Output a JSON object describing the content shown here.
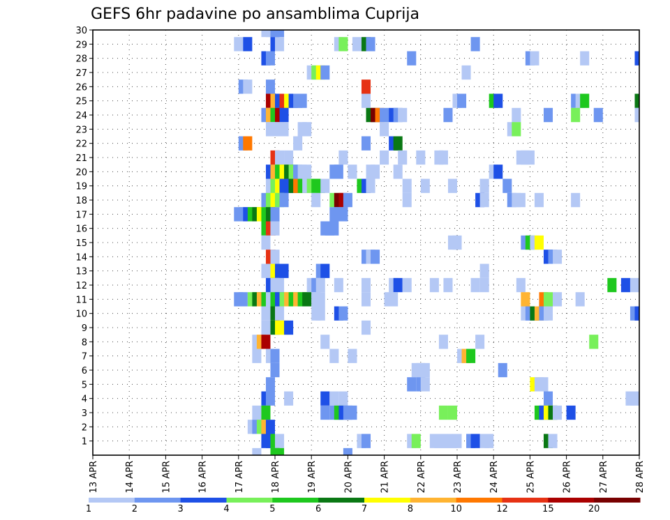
{
  "chart_data": {
    "type": "heatmap",
    "title": "GEFS 6hr padavine po ansamblima Cuprija",
    "xlabel": "",
    "ylabel": "",
    "x_ticks": [
      "13 APR",
      "14 APR",
      "15 APR",
      "16 APR",
      "17 APR",
      "18 APR",
      "19 APR",
      "20 APR",
      "21 APR",
      "22 APR",
      "23 APR",
      "24 APR",
      "25 APR",
      "26 APR",
      "27 APR",
      "28 APR"
    ],
    "x_range": [
      "13 APR 00Z",
      "28 APR 00Z"
    ],
    "time_step_hours": 6,
    "y_ticks": [
      1,
      2,
      3,
      4,
      5,
      6,
      7,
      8,
      9,
      10,
      11,
      12,
      13,
      14,
      15,
      16,
      17,
      18,
      19,
      20,
      21,
      22,
      23,
      24,
      25,
      26,
      27,
      28,
      29,
      30
    ],
    "y_range": [
      0,
      30
    ],
    "grid": true,
    "legend": {
      "placement": "bottom",
      "labels": [
        "1",
        "2",
        "3",
        "4",
        "5",
        "6",
        "7",
        "8",
        "10",
        "12",
        "15",
        "20"
      ],
      "colors": [
        "#b4c8f5",
        "#6e96f0",
        "#1e50e6",
        "#78f05a",
        "#1ec81e",
        "#0a7814",
        "#ffff00",
        "#ffb432",
        "#ff7800",
        "#e63214",
        "#aa0000",
        "#780000"
      ]
    },
    "color_bins": [
      "#b4c8f5",
      "#6e96f0",
      "#1e50e6",
      "#78f05a",
      "#1ec81e",
      "#0a7814",
      "#ffff00",
      "#ffb432",
      "#ff7800",
      "#e63214",
      "#aa0000",
      "#780000"
    ],
    "cells": [
      [
        30,
        17.625,
        0
      ],
      [
        30,
        17.75,
        0
      ],
      [
        30,
        17.875,
        1
      ],
      [
        30,
        18,
        1
      ],
      [
        29,
        16.875,
        0
      ],
      [
        29,
        17.125,
        2
      ],
      [
        29,
        17.875,
        2
      ],
      [
        29,
        18,
        0
      ],
      [
        29,
        19.625,
        0
      ],
      [
        29,
        19.75,
        3
      ],
      [
        29,
        20.125,
        0
      ],
      [
        29,
        20.375,
        5
      ],
      [
        29,
        20.5,
        1
      ],
      [
        29,
        23.375,
        1
      ],
      [
        28,
        17.625,
        2
      ],
      [
        28,
        17.75,
        1
      ],
      [
        28,
        21.625,
        1
      ],
      [
        28,
        24.875,
        1
      ],
      [
        28,
        25,
        0
      ],
      [
        28,
        26.375,
        0
      ],
      [
        28,
        27.875,
        2
      ],
      [
        27,
        18.875,
        0
      ],
      [
        27,
        19,
        3
      ],
      [
        27,
        19.125,
        6
      ],
      [
        27,
        19.25,
        1
      ],
      [
        27,
        23.125,
        0
      ],
      [
        26,
        17,
        1
      ],
      [
        26,
        17.125,
        0
      ],
      [
        26,
        17.75,
        1
      ],
      [
        26,
        20.375,
        9
      ],
      [
        25,
        17.75,
        10
      ],
      [
        25,
        17.875,
        7
      ],
      [
        25,
        18,
        2
      ],
      [
        25,
        18.125,
        9
      ],
      [
        25,
        18.25,
        6
      ],
      [
        25,
        18.375,
        2
      ],
      [
        25,
        18.5,
        1
      ],
      [
        25,
        18.625,
        1
      ],
      [
        25,
        20.375,
        0
      ],
      [
        25,
        22.875,
        0
      ],
      [
        25,
        23,
        1
      ],
      [
        25,
        23.875,
        4
      ],
      [
        25,
        24,
        2
      ],
      [
        25,
        26.125,
        1
      ],
      [
        25,
        26.25,
        0
      ],
      [
        25,
        26.375,
        4
      ],
      [
        25,
        27.875,
        5
      ],
      [
        24,
        17.625,
        1
      ],
      [
        24,
        17.75,
        7
      ],
      [
        24,
        17.875,
        4
      ],
      [
        24,
        18,
        10
      ],
      [
        24,
        18.125,
        2
      ],
      [
        24,
        20.5,
        5
      ],
      [
        24,
        20.625,
        11
      ],
      [
        24,
        20.75,
        8
      ],
      [
        24,
        20.875,
        1
      ],
      [
        24,
        21.125,
        2
      ],
      [
        24,
        21.25,
        1
      ],
      [
        24,
        21.375,
        0
      ],
      [
        24,
        22.625,
        1
      ],
      [
        24,
        24.5,
        0
      ],
      [
        24,
        25.375,
        1
      ],
      [
        24,
        26.125,
        3
      ],
      [
        24,
        26.75,
        1
      ],
      [
        24,
        27.875,
        0
      ],
      [
        23,
        17.75,
        0
      ],
      [
        23,
        17.875,
        0
      ],
      [
        23,
        18,
        0
      ],
      [
        23,
        18.125,
        0
      ],
      [
        23,
        18.625,
        0
      ],
      [
        23,
        18.75,
        0
      ],
      [
        23,
        20.875,
        0
      ],
      [
        23,
        24.375,
        0
      ],
      [
        23,
        24.5,
        3
      ],
      [
        22,
        17,
        1
      ],
      [
        22,
        17.125,
        8
      ],
      [
        22,
        18.5,
        0
      ],
      [
        22,
        20.375,
        1
      ],
      [
        22,
        21.125,
        2
      ],
      [
        22,
        21.25,
        5
      ],
      [
        21,
        17.875,
        9
      ],
      [
        21,
        18,
        0
      ],
      [
        21,
        18.25,
        0
      ],
      [
        21,
        19.75,
        0
      ],
      [
        21,
        20.875,
        0
      ],
      [
        21,
        21.375,
        0
      ],
      [
        21,
        21.875,
        0
      ],
      [
        21,
        22.375,
        0
      ],
      [
        21,
        22.5,
        0
      ],
      [
        21,
        24.625,
        0
      ],
      [
        21,
        24.75,
        0
      ],
      [
        21,
        24.875,
        0
      ],
      [
        20,
        17.75,
        2
      ],
      [
        20,
        17.875,
        7
      ],
      [
        20,
        18,
        4
      ],
      [
        20,
        18.125,
        6
      ],
      [
        20,
        18.25,
        5
      ],
      [
        20,
        18.375,
        3
      ],
      [
        20,
        18.5,
        1
      ],
      [
        20,
        18.625,
        0
      ],
      [
        20,
        18.75,
        0
      ],
      [
        20,
        19.5,
        1
      ],
      [
        20,
        19.625,
        1
      ],
      [
        20,
        20,
        0
      ],
      [
        20,
        20.5,
        0
      ],
      [
        20,
        20.625,
        0
      ],
      [
        20,
        21.25,
        0
      ],
      [
        20,
        23.875,
        0
      ],
      [
        20,
        24,
        2
      ],
      [
        19,
        17.75,
        0
      ],
      [
        19,
        17.875,
        3
      ],
      [
        19,
        18,
        6
      ],
      [
        19,
        18.125,
        2
      ],
      [
        19,
        18.25,
        2
      ],
      [
        19,
        18.375,
        5
      ],
      [
        19,
        18.5,
        8
      ],
      [
        19,
        18.625,
        4
      ],
      [
        19,
        18.75,
        0
      ],
      [
        19,
        18.875,
        3
      ],
      [
        19,
        19,
        4
      ],
      [
        19,
        19.125,
        4
      ],
      [
        19,
        19.25,
        0
      ],
      [
        19,
        20.25,
        4
      ],
      [
        19,
        20.375,
        2
      ],
      [
        19,
        20.5,
        0
      ],
      [
        19,
        21.5,
        0
      ],
      [
        19,
        22,
        0
      ],
      [
        19,
        22.75,
        0
      ],
      [
        19,
        23.625,
        0
      ],
      [
        19,
        24.25,
        1
      ],
      [
        18,
        17.625,
        1
      ],
      [
        18,
        17.75,
        3
      ],
      [
        18,
        17.875,
        6
      ],
      [
        18,
        18,
        3
      ],
      [
        18,
        18.125,
        1
      ],
      [
        18,
        19,
        0
      ],
      [
        18,
        19.5,
        3
      ],
      [
        18,
        19.625,
        11
      ],
      [
        18,
        19.75,
        10
      ],
      [
        18,
        19.875,
        1
      ],
      [
        18,
        21.5,
        0
      ],
      [
        18,
        23.5,
        2
      ],
      [
        18,
        23.625,
        0
      ],
      [
        18,
        24.375,
        1
      ],
      [
        18,
        24.5,
        0
      ],
      [
        18,
        24.625,
        0
      ],
      [
        18,
        25.125,
        0
      ],
      [
        18,
        26.125,
        0
      ],
      [
        17,
        16.875,
        1
      ],
      [
        17,
        17,
        1
      ],
      [
        17,
        17.125,
        2
      ],
      [
        17,
        17.25,
        4
      ],
      [
        17,
        17.375,
        5
      ],
      [
        17,
        17.5,
        6
      ],
      [
        17,
        17.625,
        4
      ],
      [
        17,
        17.75,
        5
      ],
      [
        17,
        17.875,
        1
      ],
      [
        17,
        19.5,
        1
      ],
      [
        17,
        19.625,
        1
      ],
      [
        17,
        19.75,
        1
      ],
      [
        16,
        17.625,
        4
      ],
      [
        16,
        17.75,
        9
      ],
      [
        16,
        17.875,
        0
      ],
      [
        16,
        19.25,
        1
      ],
      [
        16,
        19.375,
        1
      ],
      [
        16,
        19.5,
        1
      ],
      [
        15,
        17.625,
        0
      ],
      [
        15,
        22.75,
        0
      ],
      [
        15,
        22.875,
        0
      ],
      [
        15,
        24.75,
        1
      ],
      [
        15,
        24.875,
        4
      ],
      [
        15,
        25,
        0
      ],
      [
        15,
        25.125,
        6
      ],
      [
        14,
        17.75,
        9
      ],
      [
        14,
        17.875,
        0
      ],
      [
        14,
        20.375,
        1
      ],
      [
        14,
        20.5,
        0
      ],
      [
        14,
        20.625,
        1
      ],
      [
        14,
        25.375,
        2
      ],
      [
        14,
        25.5,
        1
      ],
      [
        14,
        25.625,
        0
      ],
      [
        13,
        17.625,
        0
      ],
      [
        13,
        17.75,
        0
      ],
      [
        13,
        17.875,
        6
      ],
      [
        13,
        18,
        2
      ],
      [
        13,
        18.125,
        2
      ],
      [
        13,
        19.125,
        1
      ],
      [
        13,
        19.25,
        2
      ],
      [
        13,
        23.625,
        0
      ],
      [
        12,
        17.75,
        2
      ],
      [
        12,
        17.875,
        0
      ],
      [
        12,
        18,
        0
      ],
      [
        12,
        18.875,
        0
      ],
      [
        12,
        19,
        1
      ],
      [
        12,
        19.125,
        0
      ],
      [
        12,
        19.625,
        0
      ],
      [
        12,
        20.375,
        0
      ],
      [
        12,
        21.125,
        0
      ],
      [
        12,
        21.25,
        2
      ],
      [
        12,
        21.5,
        0
      ],
      [
        12,
        22.25,
        0
      ],
      [
        12,
        22.625,
        0
      ],
      [
        12,
        23.375,
        0
      ],
      [
        12,
        23.625,
        0
      ],
      [
        12,
        24.625,
        0
      ],
      [
        12,
        27.125,
        4
      ],
      [
        12,
        27.5,
        2
      ],
      [
        12,
        27.75,
        0
      ],
      [
        11,
        16.875,
        1
      ],
      [
        11,
        17,
        1
      ],
      [
        11,
        17.25,
        3
      ],
      [
        11,
        17.375,
        5
      ],
      [
        11,
        17.5,
        7
      ],
      [
        11,
        17.625,
        4
      ],
      [
        11,
        17.75,
        0
      ],
      [
        11,
        17.875,
        4
      ],
      [
        11,
        18,
        2
      ],
      [
        11,
        18.125,
        3
      ],
      [
        11,
        18.25,
        7
      ],
      [
        11,
        18.375,
        4
      ],
      [
        11,
        18.5,
        7
      ],
      [
        11,
        18.625,
        4
      ],
      [
        11,
        18.75,
        5
      ],
      [
        11,
        19,
        0
      ],
      [
        11,
        19.125,
        0
      ],
      [
        11,
        20.375,
        0
      ],
      [
        11,
        21,
        0
      ],
      [
        11,
        21.125,
        0
      ],
      [
        11,
        24.75,
        7
      ],
      [
        11,
        25.25,
        8
      ],
      [
        11,
        25.375,
        3
      ],
      [
        11,
        25.625,
        0
      ],
      [
        11,
        26.25,
        0
      ],
      [
        10,
        17.625,
        0
      ],
      [
        10,
        17.875,
        5
      ],
      [
        10,
        18,
        0
      ],
      [
        10,
        19,
        0
      ],
      [
        10,
        19.125,
        0
      ],
      [
        10,
        19.625,
        2
      ],
      [
        10,
        19.75,
        1
      ],
      [
        10,
        24.75,
        0
      ],
      [
        10,
        24.875,
        1
      ],
      [
        10,
        25,
        5
      ],
      [
        10,
        25.125,
        7
      ],
      [
        10,
        25.25,
        1
      ],
      [
        10,
        25.375,
        0
      ],
      [
        10,
        27.75,
        1
      ],
      [
        10,
        27.875,
        2
      ],
      [
        9,
        17.625,
        0
      ],
      [
        9,
        17.875,
        5
      ],
      [
        9,
        18,
        6
      ],
      [
        9,
        18.125,
        6
      ],
      [
        9,
        18.25,
        2
      ],
      [
        9,
        20.375,
        0
      ],
      [
        8,
        17.375,
        0
      ],
      [
        8,
        17.5,
        7
      ],
      [
        8,
        17.625,
        10
      ],
      [
        8,
        19.25,
        0
      ],
      [
        8,
        22.5,
        0
      ],
      [
        8,
        23.5,
        0
      ],
      [
        8,
        26.625,
        3
      ],
      [
        7,
        17.375,
        0
      ],
      [
        7,
        17.75,
        0
      ],
      [
        7,
        17.875,
        1
      ],
      [
        7,
        19.5,
        0
      ],
      [
        7,
        20,
        0
      ],
      [
        7,
        23,
        0
      ],
      [
        7,
        23.125,
        7
      ],
      [
        7,
        23.25,
        4
      ],
      [
        6,
        17.875,
        1
      ],
      [
        6,
        21.75,
        0
      ],
      [
        6,
        21.875,
        0
      ],
      [
        6,
        22,
        0
      ],
      [
        6,
        24.125,
        1
      ],
      [
        5,
        17.75,
        1
      ],
      [
        5,
        21.625,
        1
      ],
      [
        5,
        21.875,
        1
      ],
      [
        5,
        22,
        0
      ],
      [
        5,
        25,
        6
      ],
      [
        5,
        25.125,
        0
      ],
      [
        5,
        25.25,
        0
      ],
      [
        4,
        17.625,
        2
      ],
      [
        4,
        17.75,
        1
      ],
      [
        4,
        18.25,
        0
      ],
      [
        4,
        19.25,
        2
      ],
      [
        4,
        19.5,
        0
      ],
      [
        4,
        19.75,
        0
      ],
      [
        4,
        25.375,
        1
      ],
      [
        4,
        27.625,
        0
      ],
      [
        4,
        27.75,
        0
      ],
      [
        3,
        17.375,
        0
      ],
      [
        3,
        17.625,
        4
      ],
      [
        3,
        19.25,
        1
      ],
      [
        3,
        19.5,
        1
      ],
      [
        3,
        19.625,
        4
      ],
      [
        3,
        19.75,
        2
      ],
      [
        3,
        19.875,
        1
      ],
      [
        3,
        20,
        1
      ],
      [
        3,
        22.5,
        3
      ],
      [
        3,
        22.75,
        3
      ],
      [
        3,
        25.125,
        4
      ],
      [
        3,
        25.25,
        2
      ],
      [
        3,
        25.375,
        6
      ],
      [
        3,
        25.5,
        5
      ],
      [
        3,
        25.625,
        0
      ],
      [
        3,
        26,
        2
      ],
      [
        2,
        17.25,
        0
      ],
      [
        2,
        17.375,
        1
      ],
      [
        2,
        17.5,
        3
      ],
      [
        2,
        17.625,
        7
      ],
      [
        2,
        17.75,
        2
      ],
      [
        1,
        17.625,
        2
      ],
      [
        1,
        17.75,
        2
      ],
      [
        1,
        17.875,
        4
      ],
      [
        1,
        18,
        0
      ],
      [
        1,
        20.25,
        0
      ],
      [
        1,
        20.375,
        1
      ],
      [
        1,
        21.625,
        0
      ],
      [
        1,
        21.75,
        3
      ],
      [
        1,
        22.25,
        0
      ],
      [
        1,
        22.375,
        0
      ],
      [
        1,
        22.5,
        0
      ],
      [
        1,
        22.625,
        0
      ],
      [
        1,
        22.75,
        0
      ],
      [
        1,
        22.875,
        0
      ],
      [
        1,
        23.25,
        1
      ],
      [
        1,
        23.375,
        2
      ],
      [
        1,
        23.625,
        0
      ],
      [
        1,
        23.75,
        0
      ],
      [
        1,
        25.375,
        5
      ],
      [
        1,
        25.5,
        0
      ],
      [
        0,
        17.375,
        0
      ],
      [
        0,
        17.875,
        4
      ],
      [
        0,
        18,
        4
      ],
      [
        0,
        19.875,
        1
      ]
    ]
  }
}
